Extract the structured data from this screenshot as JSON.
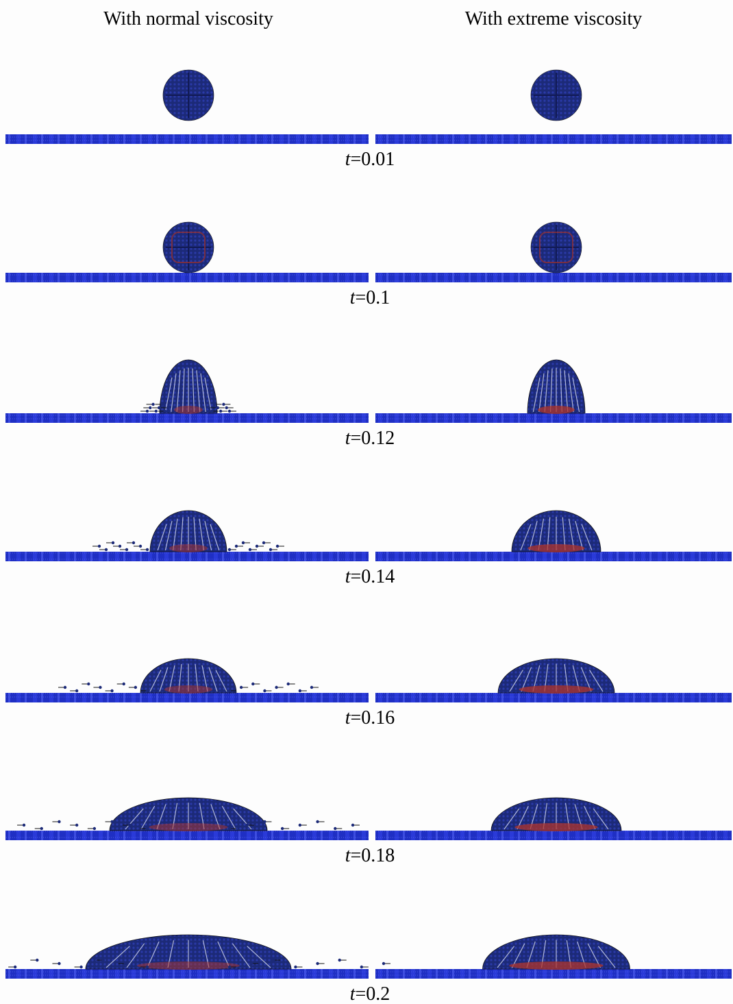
{
  "headers": [
    "With normal viscosity",
    "With extreme viscosity"
  ],
  "rows": [
    {
      "time": "t=0.01"
    },
    {
      "time": "t=0.1"
    },
    {
      "time": "t=0.12"
    },
    {
      "time": "t=0.14"
    },
    {
      "time": "t=0.16"
    },
    {
      "time": "t=0.18"
    },
    {
      "time": "t=0.2"
    }
  ]
}
